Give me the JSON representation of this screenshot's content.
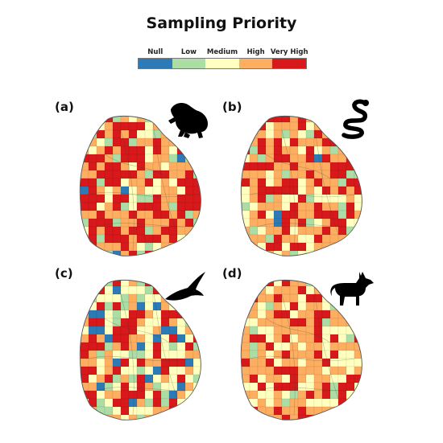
{
  "title": "Sampling Priority",
  "legend": {
    "items": [
      {
        "label": "Null",
        "color": "#2c7bb6"
      },
      {
        "label": "Low",
        "color": "#abdda4"
      },
      {
        "label": "Medium",
        "color": "#ffffbf"
      },
      {
        "label": "High",
        "color": "#fdae61"
      },
      {
        "label": "Very High",
        "color": "#d7191c"
      }
    ]
  },
  "panels": [
    {
      "letter": "(a)",
      "taxon_icon": "frog-icon",
      "seed": 11,
      "weights": [
        0.02,
        0.08,
        0.15,
        0.33,
        0.42
      ]
    },
    {
      "letter": "(b)",
      "taxon_icon": "snake-icon",
      "seed": 23,
      "weights": [
        0.01,
        0.05,
        0.16,
        0.48,
        0.3
      ]
    },
    {
      "letter": "(c)",
      "taxon_icon": "bird-icon",
      "seed": 37,
      "weights": [
        0.08,
        0.12,
        0.3,
        0.2,
        0.3
      ]
    },
    {
      "letter": "(d)",
      "taxon_icon": "fox-icon",
      "seed": 41,
      "weights": [
        0.01,
        0.08,
        0.22,
        0.46,
        0.23
      ]
    }
  ]
}
